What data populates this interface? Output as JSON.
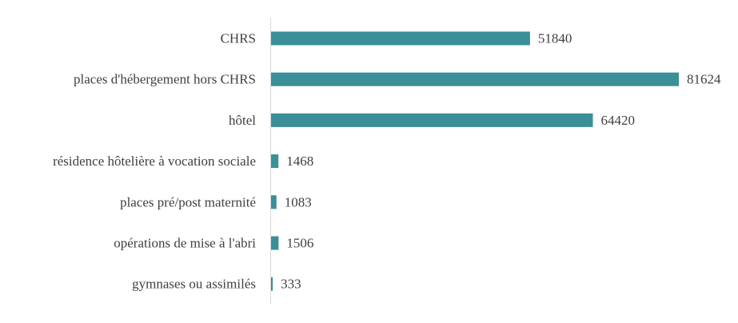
{
  "chart_data": {
    "type": "bar",
    "orientation": "horizontal",
    "categories": [
      "CHRS",
      "places d'hébergement hors CHRS",
      "hôtel",
      "résidence hôtelière à vocation sociale",
      "places pré/post maternité",
      "opérations de mise à l'abri",
      "gymnases ou assimilés"
    ],
    "values": [
      51840,
      81624,
      64420,
      1468,
      1083,
      1506,
      333
    ],
    "value_labels": [
      "51840",
      "81624",
      "64420",
      "1468",
      "1083",
      "1506",
      "333"
    ],
    "title": "",
    "xlabel": "",
    "ylabel": "",
    "xlim": [
      0,
      81624
    ],
    "grid": false,
    "legend": "none",
    "bar_color": "#3a8f98",
    "axis_color": "#d9d9d9"
  }
}
